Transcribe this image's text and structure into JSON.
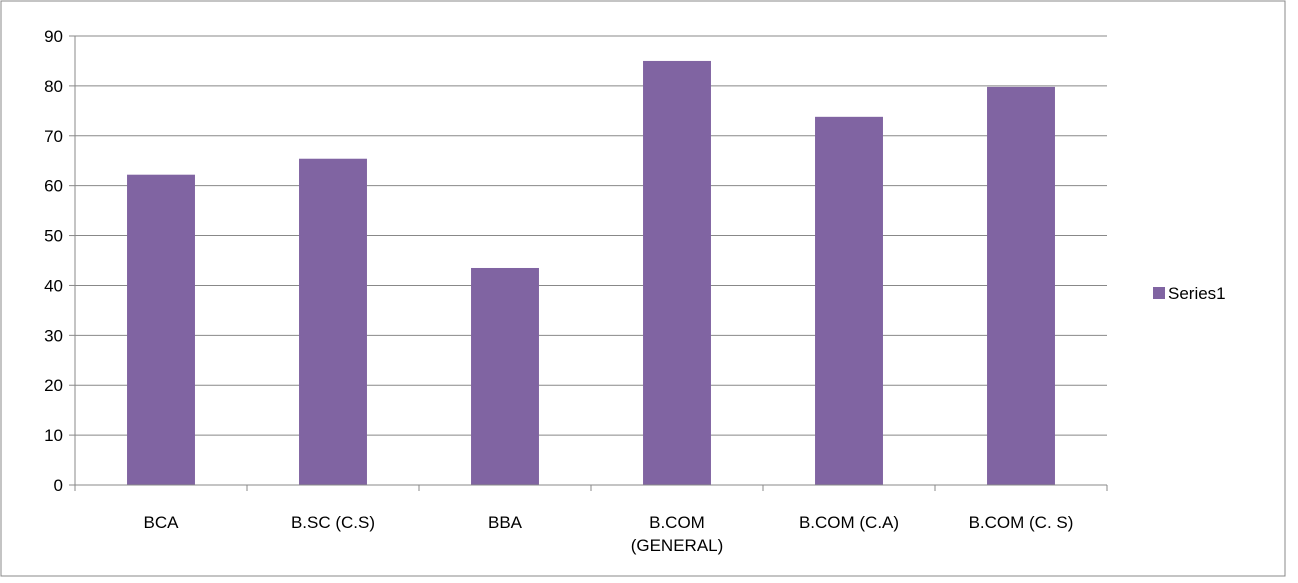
{
  "chart_data": {
    "type": "bar",
    "categories": [
      [
        "BCA"
      ],
      [
        "B.SC (C.S)"
      ],
      [
        "BBA"
      ],
      [
        "B.COM",
        "(GENERAL)"
      ],
      [
        "B.COM (C.A)"
      ],
      [
        "B.COM (C. S)"
      ]
    ],
    "series": [
      {
        "name": "Series1",
        "values": [
          62.2,
          65.4,
          43.5,
          85.0,
          73.8,
          79.8
        ],
        "color": "#8064a2"
      }
    ],
    "ylim": [
      0,
      90
    ],
    "yticks": [
      0,
      10,
      20,
      30,
      40,
      50,
      60,
      70,
      80,
      90
    ],
    "grid": true,
    "legend": "right",
    "colors": {
      "gridline": "#888888",
      "axis": "#888888",
      "frame": "#888888"
    }
  }
}
